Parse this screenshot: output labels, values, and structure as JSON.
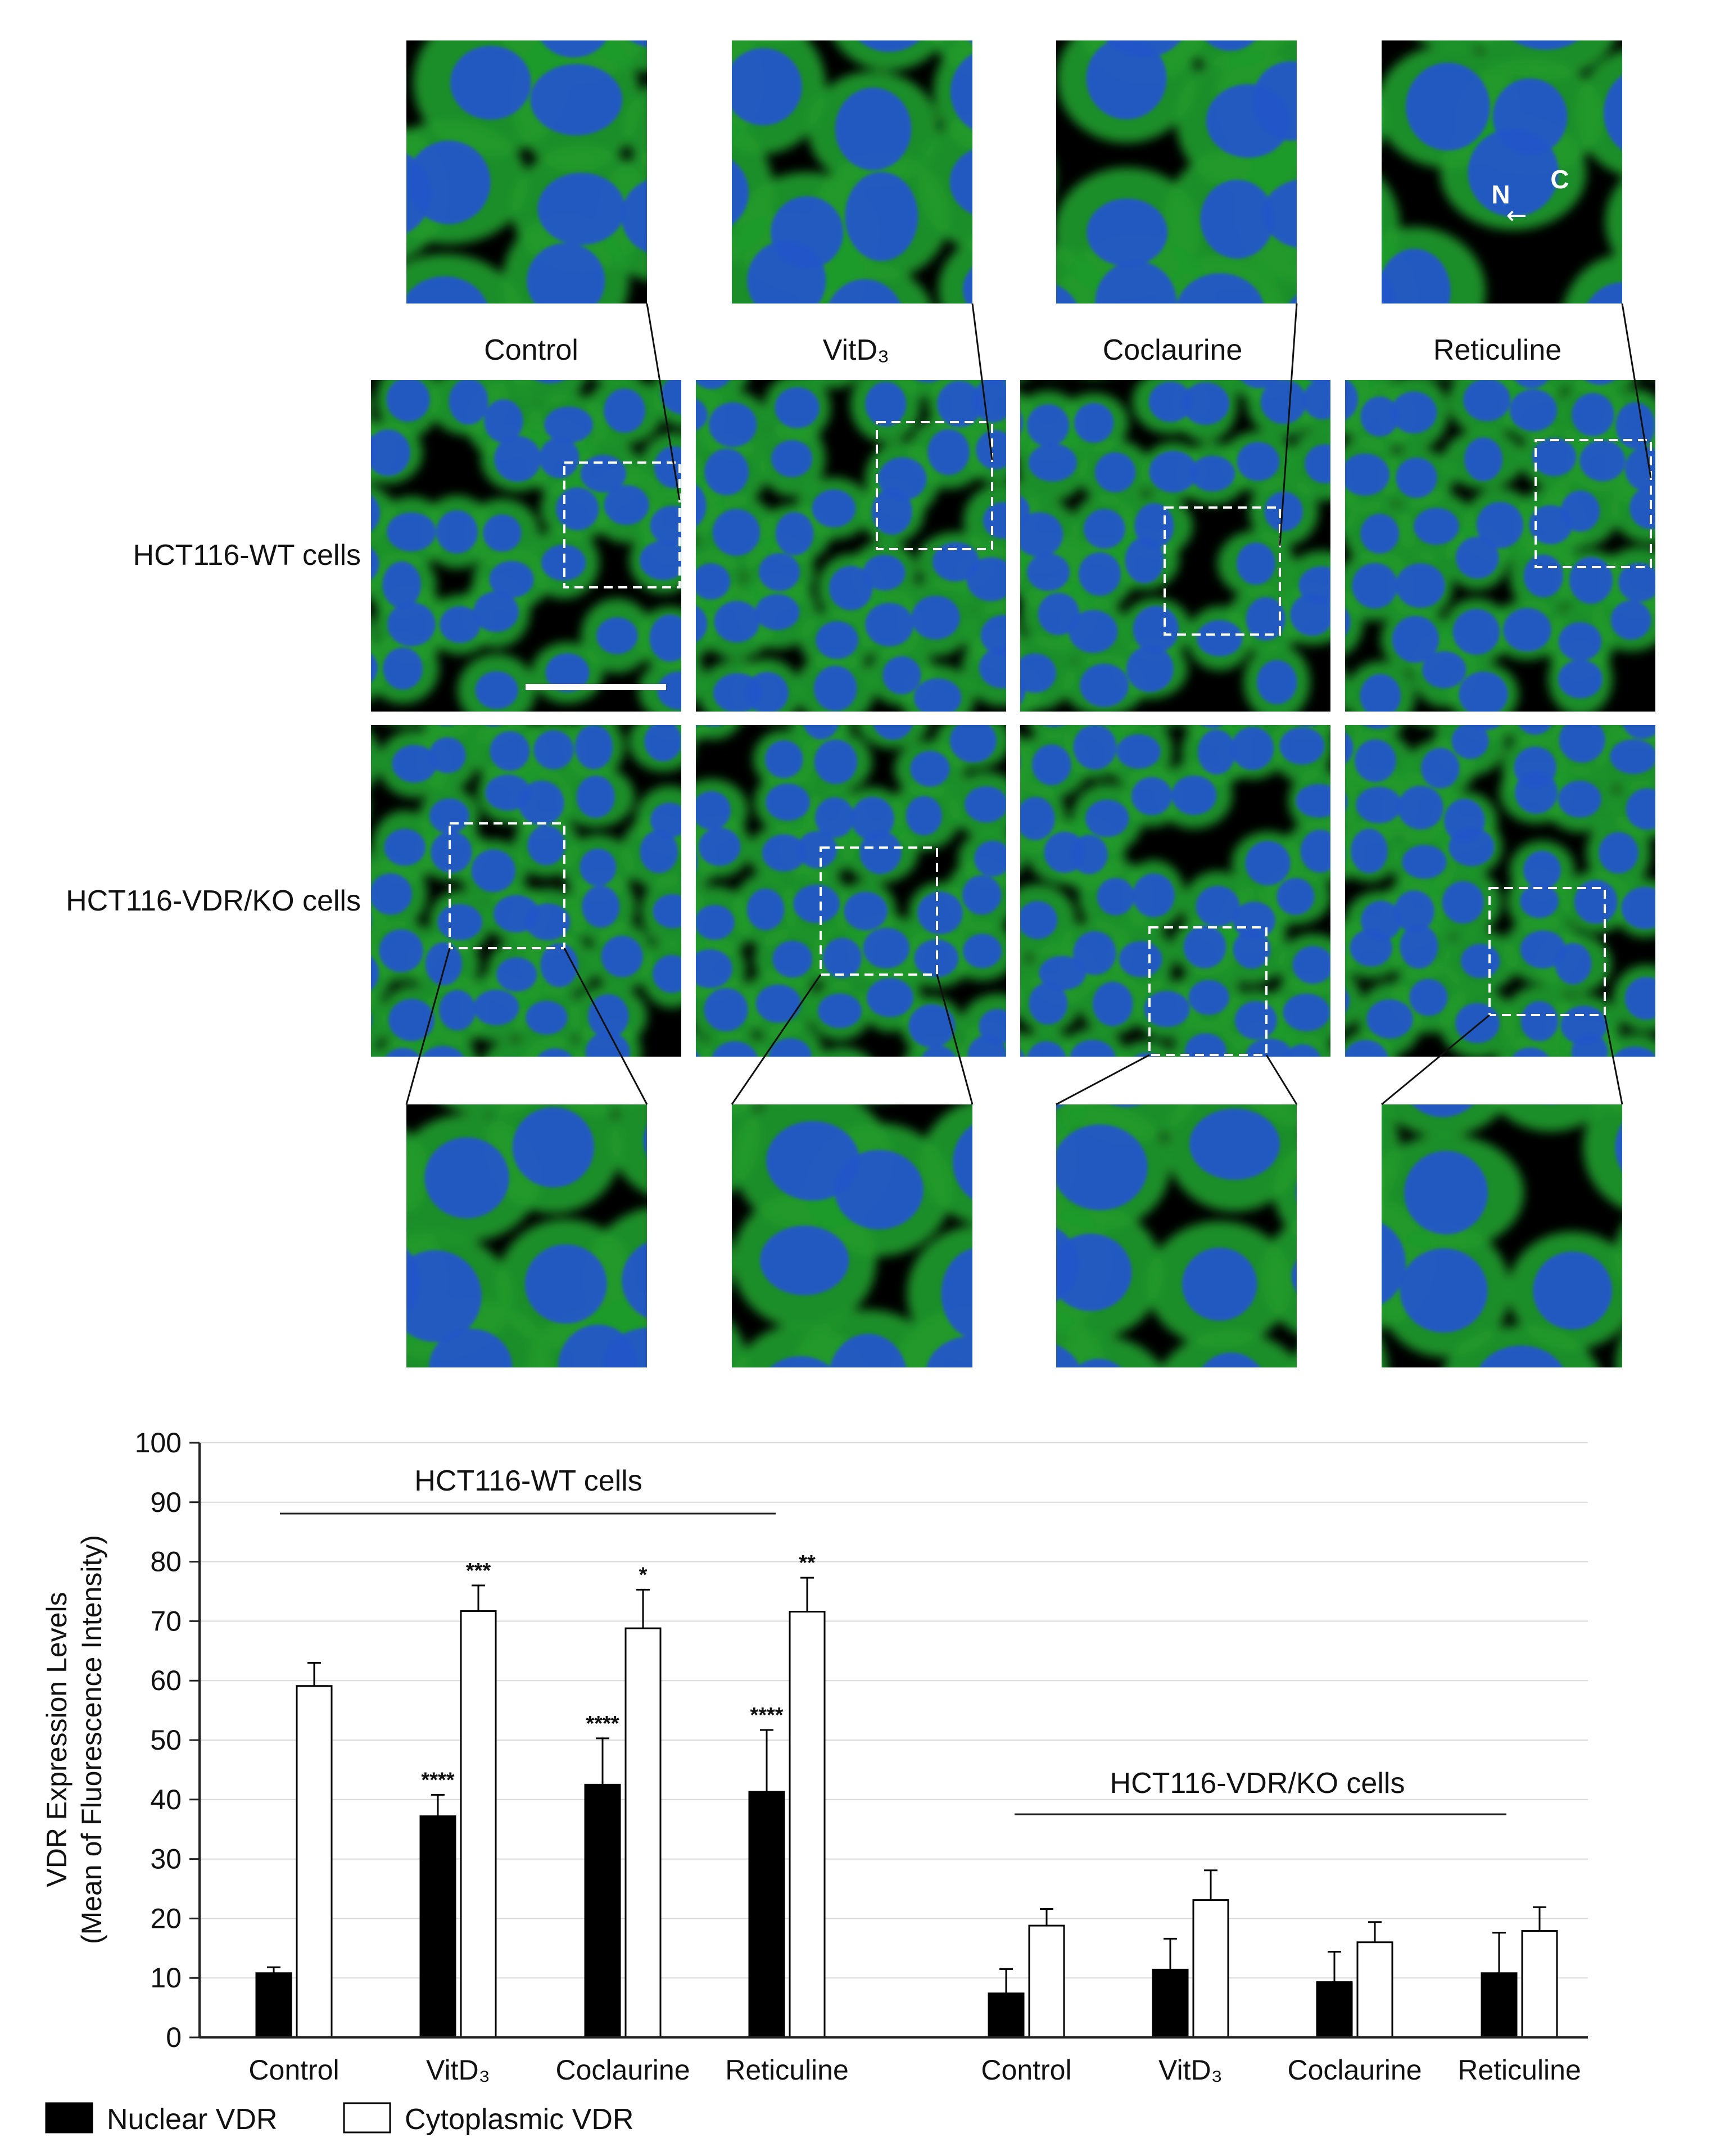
{
  "micrographs": {
    "conditions": [
      "Control",
      "VitD₃",
      "Coclaurine",
      "Reticuline"
    ],
    "rows": [
      "HCT116-WT cells",
      "HCT116-VDR/KO cells"
    ],
    "nucleus_marker": "N",
    "cytoplasm_marker": "C",
    "arrow_glyph": "←",
    "colors": {
      "cytoplasm": "#1f9a2a",
      "nucleus": "#2456c8",
      "background": "#000000",
      "frame": "#ffffff"
    }
  },
  "chart_data": {
    "type": "bar",
    "ylabel_line1": "VDR Expression Levels",
    "ylabel_line2": "(Mean of Fluorescence Intensity)",
    "ylim": [
      0,
      100
    ],
    "yticks": [
      0,
      10,
      20,
      30,
      40,
      50,
      60,
      70,
      80,
      90,
      100
    ],
    "grid": true,
    "groups": [
      {
        "name": "HCT116-WT cells",
        "categories": [
          "Control",
          "VitD₃",
          "Coclaurine",
          "Reticuline"
        ],
        "series": [
          {
            "name": "Nuclear VDR",
            "values": [
              10.8,
              37.2,
              42.5,
              41.3
            ],
            "errors": [
              1.0,
              3.6,
              7.8,
              10.4
            ],
            "sig": [
              "",
              "****",
              "****",
              "****"
            ]
          },
          {
            "name": "Cytoplasmic VDR",
            "values": [
              59.1,
              71.7,
              68.8,
              71.6
            ],
            "errors": [
              3.9,
              4.3,
              6.5,
              5.7
            ],
            "sig": [
              "",
              "***",
              "*",
              "**"
            ]
          }
        ]
      },
      {
        "name": "HCT116-VDR/KO cells",
        "categories": [
          "Control",
          "VitD₃",
          "Coclaurine",
          "Reticuline"
        ],
        "series": [
          {
            "name": "Nuclear VDR",
            "values": [
              7.4,
              11.4,
              9.3,
              10.8
            ],
            "errors": [
              4.1,
              5.2,
              5.1,
              6.8
            ],
            "sig": [
              "",
              "",
              "",
              ""
            ]
          },
          {
            "name": "Cytoplasmic VDR",
            "values": [
              18.8,
              23.1,
              16.0,
              17.9
            ],
            "errors": [
              2.8,
              5.0,
              3.4,
              4.0
            ],
            "sig": [
              "",
              "",
              "",
              ""
            ]
          }
        ]
      }
    ],
    "legend": [
      {
        "name": "Nuclear VDR",
        "color": "#000000"
      },
      {
        "name": "Cytoplasmic VDR",
        "color": "#ffffff"
      }
    ],
    "legend_position": "bottom-left"
  }
}
